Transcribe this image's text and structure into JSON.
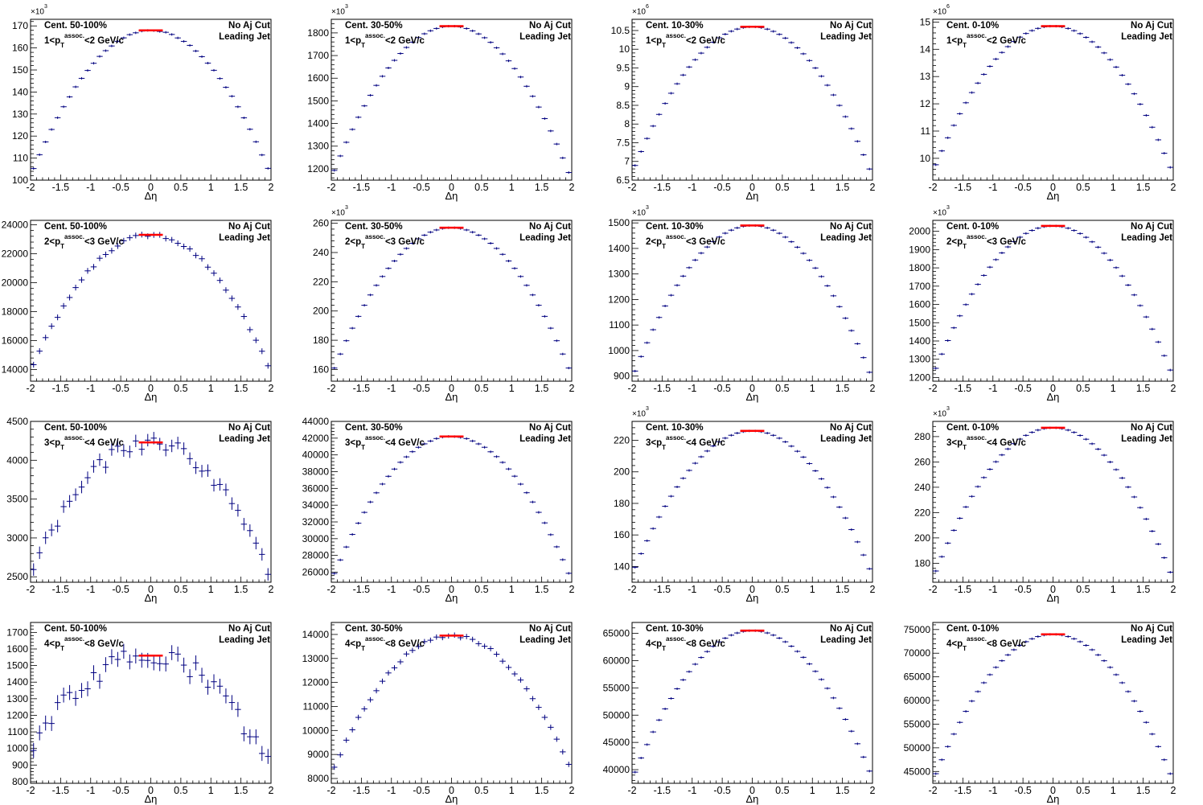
{
  "figure": {
    "x_axis_label": "Δη",
    "text_no_aj_cut": "No Aj Cut",
    "text_leading_jet": "Leading Jet",
    "centralities": [
      "Cent. 50-100%",
      "Cent. 30-50%",
      "Cent. 10-30%",
      "Cent. 0-10%"
    ],
    "pt_bins": [
      {
        "low": "1",
        "high": "2"
      },
      {
        "low": "2",
        "high": "3"
      },
      {
        "low": "3",
        "high": "4"
      },
      {
        "low": "4",
        "high": "8"
      }
    ],
    "pt_sub": "T",
    "pt_sup": "assoc.",
    "pt_unit": " GeV/c",
    "colors": {
      "data": "#000080",
      "fit": "#ff0000",
      "frame": "#000000"
    }
  },
  "chart_data": [
    {
      "type": "scatter",
      "row": 0,
      "col": 0,
      "title": "Cent. 50-100%",
      "xlabel": "Δη",
      "xlim": [
        -2,
        2
      ],
      "ylim": [
        100,
        173
      ],
      "yticks": [
        100,
        110,
        120,
        130,
        140,
        150,
        160,
        170
      ],
      "yexp": "3",
      "peak": 168,
      "edge_left": 102,
      "edge_right": 102,
      "fluct": 0.35,
      "xerr": 0.05,
      "yerr": 0.4
    },
    {
      "type": "scatter",
      "row": 0,
      "col": 1,
      "title": "Cent. 30-50%",
      "xlabel": "Δη",
      "xlim": [
        -2,
        2
      ],
      "ylim": [
        1150,
        1860
      ],
      "yticks": [
        1200,
        1300,
        1400,
        1500,
        1600,
        1700,
        1800
      ],
      "yexp": "3",
      "peak": 1830,
      "edge_left": 1160,
      "edge_right": 1150,
      "fluct": 0,
      "xerr": 0.05,
      "yerr": 2
    },
    {
      "type": "scatter",
      "row": 0,
      "col": 2,
      "title": "Cent. 10-30%",
      "xlabel": "Δη",
      "xlim": [
        -2,
        2
      ],
      "ylim": [
        6.5,
        10.8
      ],
      "yticks": [
        6.5,
        7,
        7.5,
        8,
        8.5,
        9,
        9.5,
        10,
        10.5
      ],
      "yexp": "6",
      "peak": 10.6,
      "edge_left": 6.7,
      "edge_right": 6.6,
      "fluct": 0,
      "xerr": 0.05,
      "yerr": 0.01
    },
    {
      "type": "scatter",
      "row": 0,
      "col": 3,
      "title": "Cent. 0-10%",
      "xlabel": "Δη",
      "xlim": [
        -2,
        2
      ],
      "ylim": [
        9.2,
        15.1
      ],
      "yticks": [
        10,
        11,
        12,
        13,
        14,
        15
      ],
      "yexp": "6",
      "peak": 14.85,
      "edge_left": 9.5,
      "edge_right": 9.4,
      "fluct": 0,
      "xerr": 0.05,
      "yerr": 0.01
    },
    {
      "type": "scatter",
      "row": 1,
      "col": 0,
      "title": "Cent. 50-100%",
      "xlabel": "Δη",
      "xlim": [
        -2,
        2
      ],
      "ylim": [
        13200,
        24300
      ],
      "yticks": [
        14000,
        16000,
        18000,
        20000,
        22000,
        24000
      ],
      "yexp": "",
      "peak": 23300,
      "edge_left": 13900,
      "edge_right": 13800,
      "fluct": 0.5,
      "xerr": 0.05,
      "yerr": 200
    },
    {
      "type": "scatter",
      "row": 1,
      "col": 1,
      "title": "Cent. 30-50%",
      "xlabel": "Δη",
      "xlim": [
        -2,
        2
      ],
      "ylim": [
        152,
        262
      ],
      "yticks": [
        160,
        180,
        200,
        220,
        240,
        260
      ],
      "yexp": "3",
      "peak": 257,
      "edge_left": 156,
      "edge_right": 156,
      "fluct": 0,
      "xerr": 0.05,
      "yerr": 0.3
    },
    {
      "type": "scatter",
      "row": 1,
      "col": 2,
      "title": "Cent. 10-30%",
      "xlabel": "Δη",
      "xlim": [
        -2,
        2
      ],
      "ylim": [
        880,
        1510
      ],
      "yticks": [
        900,
        1000,
        1100,
        1200,
        1300,
        1400,
        1500
      ],
      "yexp": "3",
      "peak": 1490,
      "edge_left": 890,
      "edge_right": 885,
      "fluct": 0,
      "xerr": 0.05,
      "yerr": 2
    },
    {
      "type": "scatter",
      "row": 1,
      "col": 3,
      "title": "Cent. 0-10%",
      "xlabel": "Δη",
      "xlim": [
        -2,
        2
      ],
      "ylim": [
        1180,
        2060
      ],
      "yticks": [
        1200,
        1300,
        1400,
        1500,
        1600,
        1700,
        1800,
        1900,
        2000
      ],
      "yexp": "3",
      "peak": 2030,
      "edge_left": 1210,
      "edge_right": 1200,
      "fluct": 0,
      "xerr": 0.05,
      "yerr": 3
    },
    {
      "type": "scatter",
      "row": 2,
      "col": 0,
      "title": "Cent. 50-100%",
      "xlabel": "Δη",
      "xlim": [
        -2,
        2
      ],
      "ylim": [
        2430,
        4500
      ],
      "yticks": [
        2500,
        3000,
        3500,
        4000,
        4500
      ],
      "yexp": "",
      "peak": 4230,
      "edge_left": 2550,
      "edge_right": 2500,
      "fluct": 1.0,
      "xerr": 0.05,
      "yerr": 80
    },
    {
      "type": "scatter",
      "row": 2,
      "col": 1,
      "title": "Cent. 30-50%",
      "xlabel": "Δη",
      "xlim": [
        -2,
        2
      ],
      "ylim": [
        24800,
        44000
      ],
      "yticks": [
        26000,
        28000,
        30000,
        32000,
        34000,
        36000,
        38000,
        40000,
        42000,
        44000
      ],
      "yexp": "",
      "peak": 42200,
      "edge_left": 25000,
      "edge_right": 25000,
      "fluct": 0.15,
      "xerr": 0.05,
      "yerr": 150
    },
    {
      "type": "scatter",
      "row": 2,
      "col": 2,
      "title": "Cent. 10-30%",
      "xlabel": "Δη",
      "xlim": [
        -2,
        2
      ],
      "ylim": [
        130,
        232
      ],
      "yticks": [
        140,
        160,
        180,
        200,
        220
      ],
      "yexp": "3",
      "peak": 226,
      "edge_left": 135,
      "edge_right": 134,
      "fluct": 0,
      "xerr": 0.05,
      "yerr": 0.4
    },
    {
      "type": "scatter",
      "row": 2,
      "col": 3,
      "title": "Cent. 0-10%",
      "xlabel": "Δη",
      "xlim": [
        -2,
        2
      ],
      "ylim": [
        165,
        292
      ],
      "yticks": [
        180,
        200,
        220,
        240,
        260,
        280
      ],
      "yexp": "3",
      "peak": 287,
      "edge_left": 168,
      "edge_right": 167,
      "fluct": 0,
      "xerr": 0.05,
      "yerr": 0.5
    },
    {
      "type": "scatter",
      "row": 3,
      "col": 0,
      "title": "Cent. 50-100%",
      "xlabel": "Δη",
      "xlim": [
        -2,
        2
      ],
      "ylim": [
        790,
        1760
      ],
      "yticks": [
        800,
        900,
        1000,
        1100,
        1200,
        1300,
        1400,
        1500,
        1600,
        1700
      ],
      "yexp": "",
      "peak": 1560,
      "edge_left": 1000,
      "edge_right": 870,
      "fluct": 1.2,
      "xerr": 0.05,
      "yerr": 45
    },
    {
      "type": "scatter",
      "row": 3,
      "col": 1,
      "title": "Cent. 30-50%",
      "xlabel": "Δη",
      "xlim": [
        -2,
        2
      ],
      "ylim": [
        7800,
        14500
      ],
      "yticks": [
        8000,
        9000,
        10000,
        11000,
        12000,
        13000,
        14000
      ],
      "yexp": "",
      "peak": 13950,
      "edge_left": 8200,
      "edge_right": 8300,
      "fluct": 0.5,
      "xerr": 0.05,
      "yerr": 110
    },
    {
      "type": "scatter",
      "row": 3,
      "col": 2,
      "title": "Cent. 10-30%",
      "xlabel": "Δη",
      "xlim": [
        -2,
        2
      ],
      "ylim": [
        37500,
        67000
      ],
      "yticks": [
        40000,
        45000,
        50000,
        55000,
        60000,
        65000
      ],
      "yexp": "",
      "peak": 65500,
      "edge_left": 38200,
      "edge_right": 38400,
      "fluct": 0,
      "xerr": 0.05,
      "yerr": 200
    },
    {
      "type": "scatter",
      "row": 3,
      "col": 3,
      "title": "Cent. 0-10%",
      "xlabel": "Δη",
      "xlim": [
        -2,
        2
      ],
      "ylim": [
        42500,
        76500
      ],
      "yticks": [
        45000,
        50000,
        55000,
        60000,
        65000,
        70000,
        75000
      ],
      "yexp": "",
      "peak": 74000,
      "edge_left": 43000,
      "edge_right": 43000,
      "fluct": 0,
      "xerr": 0.05,
      "yerr": 200
    }
  ]
}
